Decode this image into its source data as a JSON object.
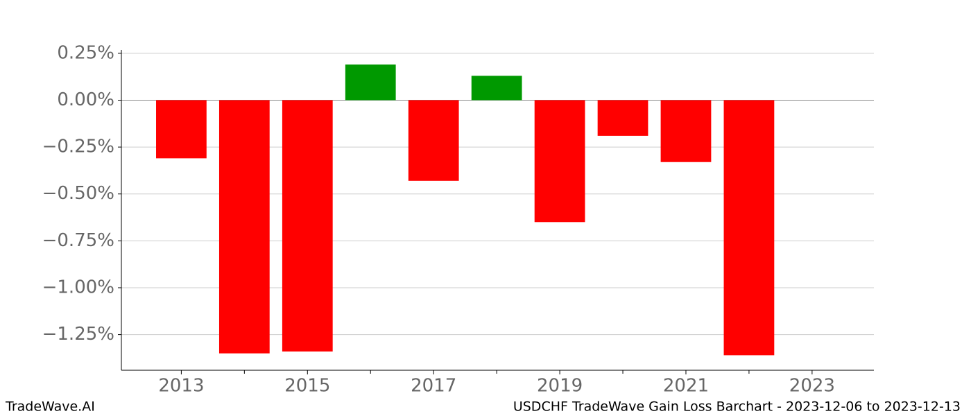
{
  "chart_data": {
    "type": "bar",
    "title": "USDCHF TradeWave Gain Loss Barchart - 2023-12-06 to 2023-12-13",
    "brand": "TradeWave.AI",
    "x": [
      2013,
      2014,
      2015,
      2016,
      2017,
      2018,
      2019,
      2020,
      2021,
      2022
    ],
    "values": [
      -0.31,
      -1.35,
      -1.34,
      0.19,
      -0.43,
      0.13,
      -0.65,
      -0.19,
      -0.33,
      -1.36
    ],
    "colors": [
      "#ff0000",
      "#ff0000",
      "#ff0000",
      "#009900",
      "#ff0000",
      "#009900",
      "#ff0000",
      "#ff0000",
      "#ff0000",
      "#ff0000"
    ],
    "xlim": [
      2012.05,
      2023.98
    ],
    "xticks": [
      2013,
      2015,
      2017,
      2019,
      2021,
      2023
    ],
    "ylim": [
      -1.44,
      0.268
    ],
    "yticks": [
      {
        "value": 0.25,
        "label": "0.25%"
      },
      {
        "value": 0,
        "label": "0.00%"
      },
      {
        "value": -0.25,
        "label": "−0.25%"
      },
      {
        "value": -0.5,
        "label": "−0.50%"
      },
      {
        "value": -0.75,
        "label": "−0.75%"
      },
      {
        "value": -1,
        "label": "−1.00%"
      },
      {
        "value": -1.25,
        "label": "−1.25%"
      }
    ],
    "grid": true
  }
}
